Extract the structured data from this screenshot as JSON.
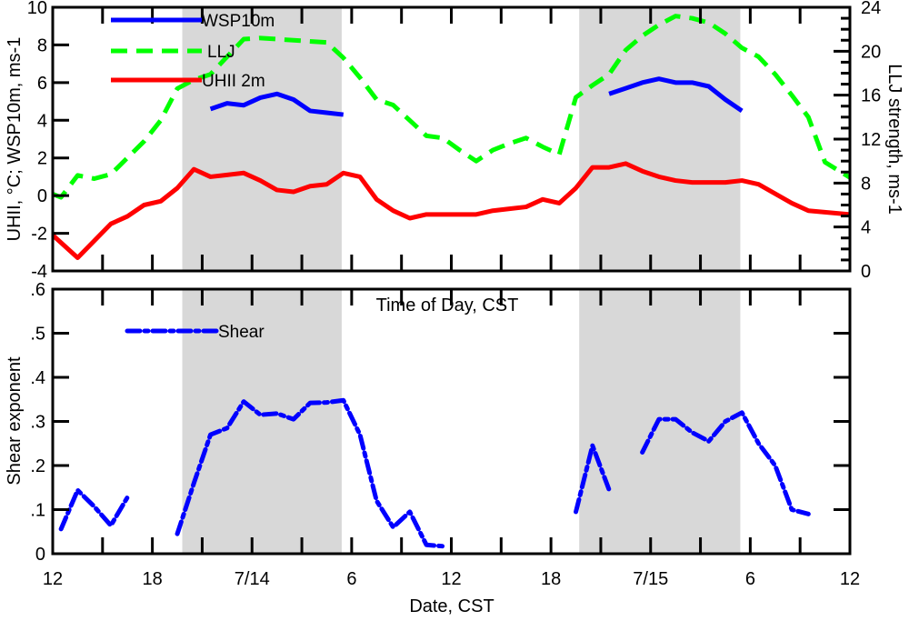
{
  "chart_data": [
    {
      "type": "line",
      "panel": "top",
      "xlabel": "Time of Day, CST",
      "ylabel": "UHII, °C; WSP10m, ms-1",
      "ylabel_right": "LLJ strength, ms-1",
      "xlim_hours": [
        0,
        48
      ],
      "ylim": [
        -4,
        10
      ],
      "ylim_right": [
        0,
        24
      ],
      "yticks": [
        "-4",
        "-2",
        "0",
        "2",
        "4",
        "6",
        "8",
        "10"
      ],
      "yticks_right": [
        "0",
        "4",
        "8",
        "12",
        "16",
        "20",
        "24"
      ],
      "legend_placement": "top-left",
      "series": [
        {
          "name": "WSP10m",
          "axis": "left",
          "color": "#0000ff",
          "style": "solid",
          "segments": [
            [
              [
                9.5,
                4.6
              ],
              [
                10.5,
                4.9
              ],
              [
                11.5,
                4.8
              ],
              [
                12.5,
                5.2
              ],
              [
                13.5,
                5.4
              ],
              [
                14.5,
                5.1
              ],
              [
                15.5,
                4.5
              ],
              [
                16.5,
                4.4
              ],
              [
                17.5,
                4.3
              ]
            ],
            [
              [
                33.5,
                5.4
              ],
              [
                34.5,
                5.7
              ],
              [
                35.5,
                6.0
              ],
              [
                36.5,
                6.2
              ],
              [
                37.5,
                6.0
              ],
              [
                38.5,
                6.0
              ],
              [
                39.5,
                5.8
              ],
              [
                40.5,
                5.1
              ],
              [
                41.5,
                4.5
              ]
            ]
          ]
        },
        {
          "name": "LLJ",
          "axis": "right",
          "color": "#00ff00",
          "style": "dashed",
          "segments": [
            [
              [
                0,
                7.0
              ],
              [
                0.5,
                6.7
              ],
              [
                1.5,
                8.7
              ],
              [
                2.5,
                8.4
              ],
              [
                3.5,
                8.8
              ],
              [
                4.5,
                10.3
              ],
              [
                5.5,
                11.8
              ],
              [
                6.5,
                13.7
              ],
              [
                7.5,
                16.6
              ],
              [
                8.5,
                17.4
              ],
              [
                9.5,
                17.9
              ],
              [
                10.5,
                19.5
              ],
              [
                11.5,
                21.1
              ],
              [
                12.5,
                21.2
              ],
              [
                13.5,
                21.1
              ],
              [
                14.5,
                21.0
              ],
              [
                15.5,
                20.9
              ],
              [
                16.5,
                20.8
              ],
              [
                17.5,
                19.4
              ],
              [
                18.5,
                17.6
              ],
              [
                19.5,
                15.6
              ],
              [
                20.5,
                15.1
              ],
              [
                21.5,
                13.7
              ],
              [
                22.5,
                12.3
              ],
              [
                23.5,
                12.1
              ],
              [
                24.5,
                11.0
              ],
              [
                25.5,
                10.0
              ],
              [
                26.5,
                11.0
              ],
              [
                27.5,
                11.6
              ],
              [
                28.5,
                12.1
              ],
              [
                29.5,
                11.3
              ],
              [
                30.5,
                10.6
              ],
              [
                31.5,
                15.8
              ],
              [
                32.5,
                16.9
              ],
              [
                33.5,
                17.9
              ],
              [
                34.5,
                20.1
              ],
              [
                35.5,
                21.4
              ],
              [
                36.5,
                22.4
              ],
              [
                37.5,
                23.2
              ],
              [
                38.5,
                23.0
              ],
              [
                39.5,
                22.6
              ],
              [
                40.5,
                21.6
              ],
              [
                41.5,
                20.3
              ],
              [
                42.5,
                19.5
              ],
              [
                43.5,
                17.9
              ],
              [
                44.5,
                16.0
              ],
              [
                45.5,
                14.0
              ],
              [
                46.5,
                9.9
              ],
              [
                48,
                8.5
              ]
            ]
          ]
        },
        {
          "name": "UHII 2m",
          "axis": "left",
          "color": "#ff0000",
          "style": "solid",
          "segments": [
            [
              [
                0,
                -2.1
              ],
              [
                1.5,
                -3.3
              ],
              [
                2.5,
                -2.4
              ],
              [
                3.5,
                -1.5
              ],
              [
                4.5,
                -1.1
              ],
              [
                5.5,
                -0.5
              ],
              [
                6.5,
                -0.3
              ],
              [
                7.5,
                0.4
              ],
              [
                8.5,
                1.4
              ],
              [
                9.5,
                1.0
              ],
              [
                10.5,
                1.1
              ],
              [
                11.5,
                1.2
              ],
              [
                12.5,
                0.8
              ],
              [
                13.5,
                0.3
              ],
              [
                14.5,
                0.2
              ],
              [
                15.5,
                0.5
              ],
              [
                16.5,
                0.6
              ],
              [
                17.5,
                1.2
              ],
              [
                18.5,
                1.0
              ],
              [
                19.5,
                -0.2
              ],
              [
                20.5,
                -0.8
              ],
              [
                21.5,
                -1.2
              ],
              [
                22.5,
                -1.0
              ],
              [
                23.5,
                -1.0
              ],
              [
                24.5,
                -1.0
              ],
              [
                25.5,
                -1.0
              ],
              [
                26.5,
                -0.8
              ],
              [
                27.5,
                -0.7
              ],
              [
                28.5,
                -0.6
              ],
              [
                29.5,
                -0.2
              ],
              [
                30.5,
                -0.4
              ],
              [
                31.5,
                0.4
              ],
              [
                32.5,
                1.5
              ],
              [
                33.5,
                1.5
              ],
              [
                34.5,
                1.7
              ],
              [
                35.5,
                1.3
              ],
              [
                36.5,
                1.0
              ],
              [
                37.5,
                0.8
              ],
              [
                38.5,
                0.7
              ],
              [
                39.5,
                0.7
              ],
              [
                40.5,
                0.7
              ],
              [
                41.5,
                0.8
              ],
              [
                42.5,
                0.6
              ],
              [
                43.5,
                0.1
              ],
              [
                44.5,
                -0.4
              ],
              [
                45.5,
                -0.8
              ],
              [
                48,
                -1.0
              ]
            ]
          ]
        }
      ]
    },
    {
      "type": "line",
      "panel": "bottom",
      "xlabel": "Date, CST",
      "ylabel": "Shear exponent",
      "xlim_hours": [
        0,
        48
      ],
      "ylim": [
        0,
        0.6
      ],
      "yticks": [
        "0",
        ".1",
        ".2",
        ".3",
        ".4",
        ".5",
        ".6"
      ],
      "xticks": [
        "12",
        "18",
        "7/14",
        "6",
        "12",
        "18",
        "7/15",
        "6",
        "12"
      ],
      "legend_placement": "top-left",
      "series": [
        {
          "name": "Shear",
          "color": "#0000ff",
          "style": "dash-dot",
          "segments": [
            [
              [
                0.5,
                0.056
              ],
              [
                1.5,
                0.144
              ],
              [
                2.5,
                0.107
              ],
              [
                3.5,
                0.064
              ],
              [
                4.5,
                0.128
              ]
            ],
            [
              [
                7.5,
                0.045
              ],
              [
                8.5,
                0.16
              ],
              [
                9.5,
                0.27
              ],
              [
                10.5,
                0.285
              ],
              [
                11.5,
                0.345
              ],
              [
                12.5,
                0.315
              ],
              [
                13.5,
                0.318
              ],
              [
                14.5,
                0.305
              ],
              [
                15.5,
                0.342
              ],
              [
                16.5,
                0.343
              ],
              [
                17.5,
                0.348
              ],
              [
                18.5,
                0.27
              ],
              [
                19.5,
                0.12
              ],
              [
                20.5,
                0.06
              ],
              [
                21.5,
                0.095
              ],
              [
                22.5,
                0.02
              ],
              [
                23.5,
                0.017
              ]
            ],
            [
              [
                31.5,
                0.095
              ],
              [
                32.5,
                0.245
              ],
              [
                33.5,
                0.145
              ]
            ],
            [
              [
                35.5,
                0.23
              ],
              [
                36.5,
                0.305
              ],
              [
                37.5,
                0.305
              ],
              [
                38.5,
                0.275
              ],
              [
                39.5,
                0.255
              ],
              [
                40.5,
                0.3
              ],
              [
                41.5,
                0.32
              ],
              [
                42.5,
                0.25
              ],
              [
                43.5,
                0.2
              ],
              [
                44.5,
                0.1
              ],
              [
                45.5,
                0.09
              ]
            ]
          ]
        }
      ]
    }
  ],
  "night_shading_hours": [
    [
      7.8,
      17.4
    ],
    [
      31.7,
      41.4
    ]
  ],
  "shading_color": "#d8d8d8"
}
